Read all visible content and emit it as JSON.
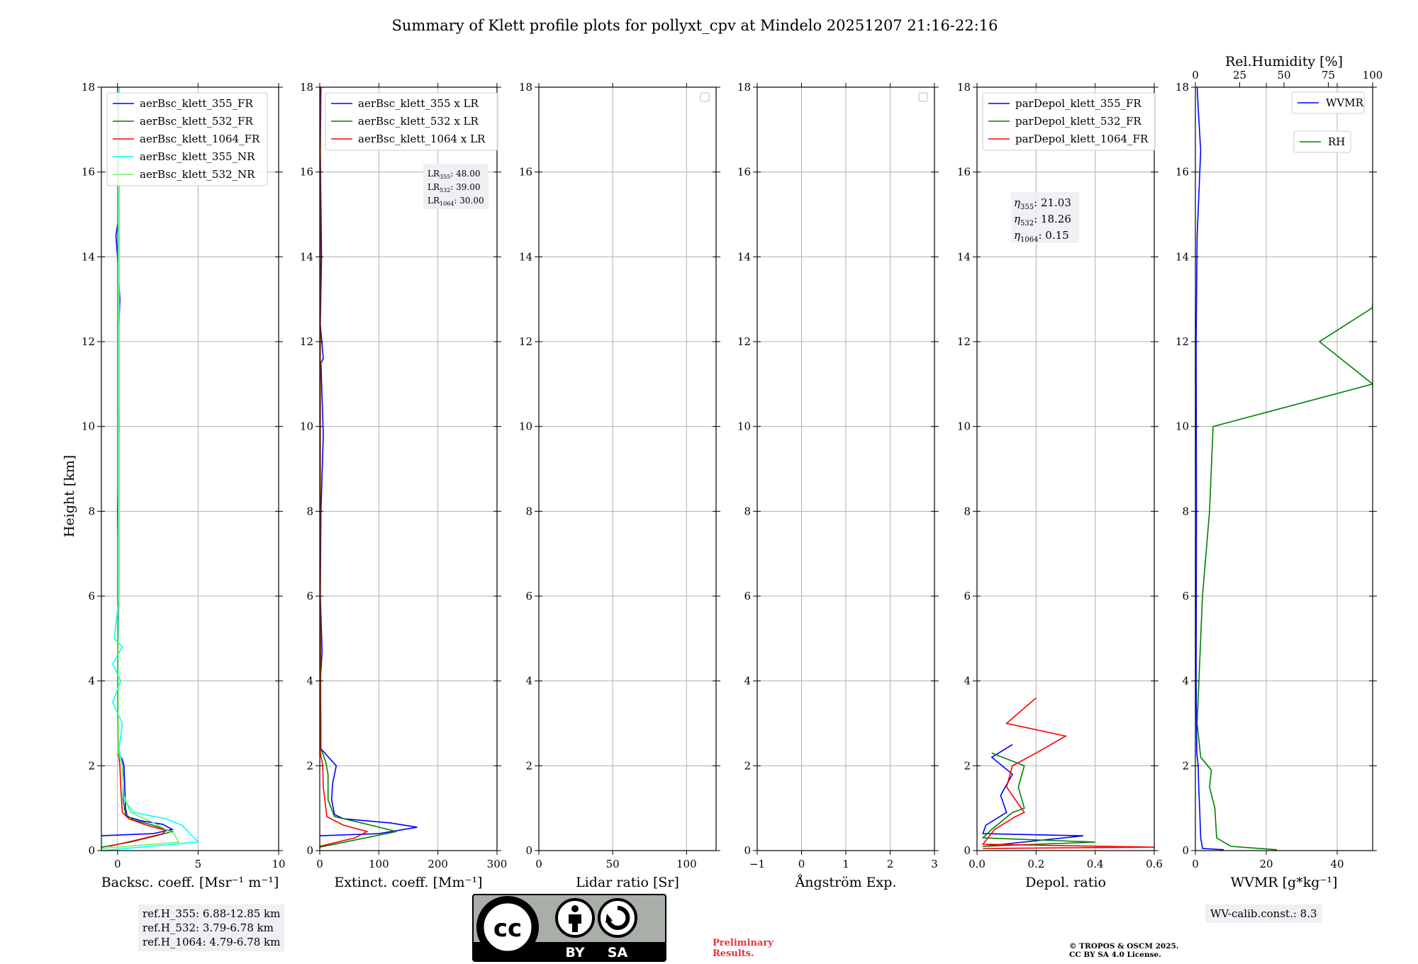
{
  "figure_title": "Summary of Klett profile plots for pollyxt_cpv at Mindelo 20251207 21:16-22:16",
  "shared_ylabel": "Height [km]",
  "colors": {
    "c355": "#0000ff",
    "c532": "#008000",
    "c1064": "#ff0000",
    "c355nr": "#00ffff",
    "c532nr": "#6ff06f"
  },
  "chart_data": [
    {
      "type": "line",
      "panel": "backscatter",
      "xlabel": "Backsc. coeff. [Msr⁻¹ m⁻¹]",
      "xlim": [
        -1,
        10
      ],
      "ylim": [
        0,
        18
      ],
      "xticks": [
        0,
        5,
        10
      ],
      "yticks": [
        0,
        2,
        4,
        6,
        8,
        10,
        12,
        14,
        16,
        18
      ],
      "legend_position": "top-left",
      "series": [
        {
          "name": "aerBsc_klett_355_FR",
          "color": "#0000ff",
          "profile": [
            [
              -1,
              0.35
            ],
            [
              2.2,
              0.4
            ],
            [
              3.4,
              0.5
            ],
            [
              2.8,
              0.62
            ],
            [
              1.5,
              0.7
            ],
            [
              0.6,
              0.8
            ],
            [
              0.5,
              1.0
            ],
            [
              0.45,
              1.5
            ],
            [
              0.4,
              2.0
            ],
            [
              0.3,
              2.15
            ],
            [
              0.05,
              2.3
            ],
            [
              0.02,
              4
            ],
            [
              0.08,
              6
            ],
            [
              0.0,
              8
            ],
            [
              0.1,
              10
            ],
            [
              0.05,
              12
            ],
            [
              0.15,
              13
            ],
            [
              0.0,
              14
            ],
            [
              -0.1,
              14.5
            ],
            [
              0.1,
              15
            ],
            [
              0.0,
              16
            ],
            [
              0.05,
              17
            ],
            [
              0.0,
              18
            ]
          ]
        },
        {
          "name": "aerBsc_klett_532_FR",
          "color": "#008000",
          "profile": [
            [
              -1,
              0.08
            ],
            [
              0.8,
              0.2
            ],
            [
              2.4,
              0.35
            ],
            [
              3.4,
              0.45
            ],
            [
              2.2,
              0.6
            ],
            [
              1.0,
              0.72
            ],
            [
              0.5,
              0.85
            ],
            [
              0.35,
              1.2
            ],
            [
              0.35,
              1.8
            ],
            [
              0.3,
              2.05
            ],
            [
              0.05,
              2.25
            ],
            [
              0.02,
              6
            ],
            [
              0.04,
              10
            ],
            [
              0.02,
              14
            ],
            [
              0.03,
              18
            ]
          ]
        },
        {
          "name": "aerBsc_klett_1064_FR",
          "color": "#ff0000",
          "profile": [
            [
              -0.5,
              0.1
            ],
            [
              1.2,
              0.25
            ],
            [
              2.8,
              0.4
            ],
            [
              3.0,
              0.48
            ],
            [
              1.8,
              0.6
            ],
            [
              0.7,
              0.75
            ],
            [
              0.3,
              0.9
            ],
            [
              0.2,
              1.5
            ],
            [
              0.15,
              2.0
            ],
            [
              0.05,
              2.3
            ],
            [
              0.02,
              6
            ],
            [
              0.02,
              12
            ],
            [
              0.03,
              18
            ]
          ]
        },
        {
          "name": "aerBsc_klett_355_NR",
          "color": "#00ffff",
          "profile": [
            [
              -1,
              0.0
            ],
            [
              5.0,
              0.2
            ],
            [
              4.0,
              0.6
            ],
            [
              3.0,
              0.75
            ],
            [
              1.0,
              0.9
            ],
            [
              0.4,
              1.2
            ],
            [
              0.3,
              2.0
            ],
            [
              0.1,
              2.4
            ],
            [
              0.3,
              3.0
            ],
            [
              -0.3,
              3.5
            ],
            [
              0.2,
              4.0
            ],
            [
              -0.3,
              4.4
            ],
            [
              0.3,
              4.8
            ],
            [
              -0.2,
              5.0
            ],
            [
              0.1,
              6.0
            ],
            [
              0.1,
              18
            ]
          ]
        },
        {
          "name": "aerBsc_klett_532_NR",
          "color": "#6ff06f",
          "profile": [
            [
              -1,
              0.05
            ],
            [
              3.8,
              0.2
            ],
            [
              3.5,
              0.4
            ],
            [
              2.0,
              0.7
            ],
            [
              0.8,
              0.9
            ],
            [
              0.4,
              1.3
            ],
            [
              0.3,
              2.0
            ],
            [
              0.05,
              2.3
            ],
            [
              0.05,
              18
            ]
          ]
        }
      ],
      "annotation_lines": [
        "ref.H_355: 6.88-12.85 km",
        "ref.H_532: 3.79-6.78 km",
        "ref.H_1064: 4.79-6.78 km"
      ]
    },
    {
      "type": "line",
      "panel": "extinction",
      "xlabel": "Extinct. coeff. [Mm⁻¹]",
      "xlim": [
        0,
        300
      ],
      "ylim": [
        0,
        18
      ],
      "xticks": [
        0,
        100,
        200,
        300
      ],
      "legend_position": "top-left",
      "series": [
        {
          "name": "aerBsc_klett_355 x LR",
          "color": "#0000ff",
          "profile": [
            [
              0,
              0.35
            ],
            [
              100,
              0.4
            ],
            [
              165,
              0.55
            ],
            [
              120,
              0.65
            ],
            [
              40,
              0.75
            ],
            [
              25,
              0.85
            ],
            [
              20,
              1.2
            ],
            [
              22,
              1.6
            ],
            [
              28,
              2.0
            ],
            [
              15,
              2.2
            ],
            [
              2,
              2.4
            ],
            [
              1,
              4
            ],
            [
              4,
              4.7
            ],
            [
              1,
              6
            ],
            [
              2,
              8
            ],
            [
              6,
              9.8
            ],
            [
              2,
              11.5
            ],
            [
              6,
              11.6
            ],
            [
              1,
              12.4
            ],
            [
              3,
              14
            ],
            [
              1,
              16.5
            ],
            [
              2,
              18
            ]
          ]
        },
        {
          "name": "aerBsc_klett_532 x LR",
          "color": "#008000",
          "profile": [
            [
              0,
              0.08
            ],
            [
              60,
              0.25
            ],
            [
              130,
              0.45
            ],
            [
              80,
              0.62
            ],
            [
              25,
              0.8
            ],
            [
              14,
              1.2
            ],
            [
              14,
              1.8
            ],
            [
              10,
              2.1
            ],
            [
              2,
              2.4
            ],
            [
              1,
              6
            ],
            [
              1,
              18
            ]
          ]
        },
        {
          "name": "aerBsc_klett_1064 x LR",
          "color": "#ff0000",
          "profile": [
            [
              0,
              0.1
            ],
            [
              60,
              0.3
            ],
            [
              80,
              0.45
            ],
            [
              40,
              0.6
            ],
            [
              12,
              0.8
            ],
            [
              6,
              1.5
            ],
            [
              5,
              2.0
            ],
            [
              1,
              2.3
            ],
            [
              0.5,
              6
            ],
            [
              0.5,
              18
            ]
          ]
        }
      ],
      "lr_labels": [
        {
          "key": "LR",
          "sub": "355",
          "value": ": 48.00"
        },
        {
          "key": "LR",
          "sub": "532",
          "value": ": 39.00"
        },
        {
          "key": "LR",
          "sub": "1064",
          "value": ": 30.00"
        }
      ]
    },
    {
      "type": "line",
      "panel": "lidar_ratio",
      "xlabel": "Lidar ratio [Sr]",
      "xlim": [
        0,
        120
      ],
      "ylim": [
        0,
        18
      ],
      "xticks": [
        0,
        50,
        100
      ],
      "series": []
    },
    {
      "type": "line",
      "panel": "angstrom",
      "xlabel": "Ångström Exp.",
      "xlim": [
        -1,
        3
      ],
      "ylim": [
        0,
        18
      ],
      "xticks": [
        -1,
        0,
        1,
        2,
        3
      ],
      "series": []
    },
    {
      "type": "line",
      "panel": "depolarization",
      "xlabel": "Depol. ratio",
      "xlim": [
        0,
        0.6
      ],
      "ylim": [
        0,
        18
      ],
      "xticks": [
        0.0,
        0.2,
        0.4,
        0.6
      ],
      "legend_position": "top-left",
      "series": [
        {
          "name": "parDepol_klett_355_FR",
          "color": "#0000ff",
          "profile": [
            [
              0.02,
              0.1
            ],
            [
              0.36,
              0.35
            ],
            [
              0.02,
              0.4
            ],
            [
              0.03,
              0.6
            ],
            [
              0.1,
              0.9
            ],
            [
              0.08,
              1.3
            ],
            [
              0.12,
              1.8
            ],
            [
              0.05,
              2.2
            ],
            [
              0.12,
              2.5
            ]
          ]
        },
        {
          "name": "parDepol_klett_532_FR",
          "color": "#008000",
          "profile": [
            [
              0.02,
              0.1
            ],
            [
              0.4,
              0.2
            ],
            [
              0.02,
              0.3
            ],
            [
              0.05,
              0.5
            ],
            [
              0.12,
              0.9
            ],
            [
              0.16,
              1.0
            ],
            [
              0.14,
              1.5
            ],
            [
              0.16,
              2.0
            ],
            [
              0.05,
              2.3
            ]
          ]
        },
        {
          "name": "parDepol_klett_1064_FR",
          "color": "#ff0000",
          "profile": [
            [
              0.02,
              0.05
            ],
            [
              0.6,
              0.08
            ],
            [
              0.02,
              0.15
            ],
            [
              0.06,
              0.5
            ],
            [
              0.13,
              0.8
            ],
            [
              0.16,
              0.9
            ],
            [
              0.1,
              1.5
            ],
            [
              0.12,
              2.0
            ],
            [
              0.2,
              2.3
            ],
            [
              0.3,
              2.7
            ],
            [
              0.1,
              3.0
            ],
            [
              0.2,
              3.6
            ]
          ]
        }
      ],
      "eta_labels": [
        {
          "key": "η",
          "sub": "355",
          "value": ": 21.03"
        },
        {
          "key": "η",
          "sub": "532",
          "value": ": 18.26"
        },
        {
          "key": "η",
          "sub": "1064",
          "value": ": 0.15"
        }
      ]
    },
    {
      "type": "line",
      "panel": "wvmr_rh",
      "xlabel": "WVMR [g*kg⁻¹]",
      "xlim": [
        0,
        50
      ],
      "ylim": [
        0,
        18
      ],
      "xticks": [
        0,
        20,
        40
      ],
      "top_xlabel": "Rel.Humidity [%]",
      "top_xlim": [
        0,
        100
      ],
      "top_xticks": [
        0,
        25,
        50,
        75,
        100
      ],
      "series": [
        {
          "name": "WVMR",
          "color": "#0000ff",
          "axis": "bottom",
          "profile": [
            [
              8,
              0.02
            ],
            [
              2,
              0.05
            ],
            [
              1.5,
              0.3
            ],
            [
              1.2,
              1.0
            ],
            [
              0.9,
              1.6
            ],
            [
              0.8,
              2.0
            ],
            [
              0.4,
              2.3
            ],
            [
              0.2,
              4
            ],
            [
              0.3,
              8
            ],
            [
              0.2,
              12
            ],
            [
              0.5,
              14.5
            ],
            [
              1.5,
              16.5
            ],
            [
              0.8,
              17.5
            ],
            [
              0.5,
              18
            ]
          ]
        },
        {
          "name": "RH",
          "color": "#008000",
          "axis": "top",
          "profile": [
            [
              46,
              0.02
            ],
            [
              20,
              0.1
            ],
            [
              12,
              0.3
            ],
            [
              11,
              1.0
            ],
            [
              8,
              1.5
            ],
            [
              9,
              1.9
            ],
            [
              3,
              2.2
            ],
            [
              1,
              3
            ],
            [
              4,
              6
            ],
            [
              8,
              8
            ],
            [
              10,
              10
            ],
            [
              100,
              11
            ],
            [
              70,
              12
            ],
            [
              100,
              12.8
            ],
            [
              100,
              12.9
            ]
          ]
        }
      ],
      "annotation_text": "WV-calib.const.: 8.3"
    }
  ],
  "cc_badge": {
    "logo": "cc",
    "by": "BY",
    "sa": "SA"
  },
  "preliminary": [
    "Preliminary",
    "Results."
  ],
  "copyright": [
    "© TROPOS & OSCM 2025.",
    "CC BY SA 4.0 License."
  ]
}
